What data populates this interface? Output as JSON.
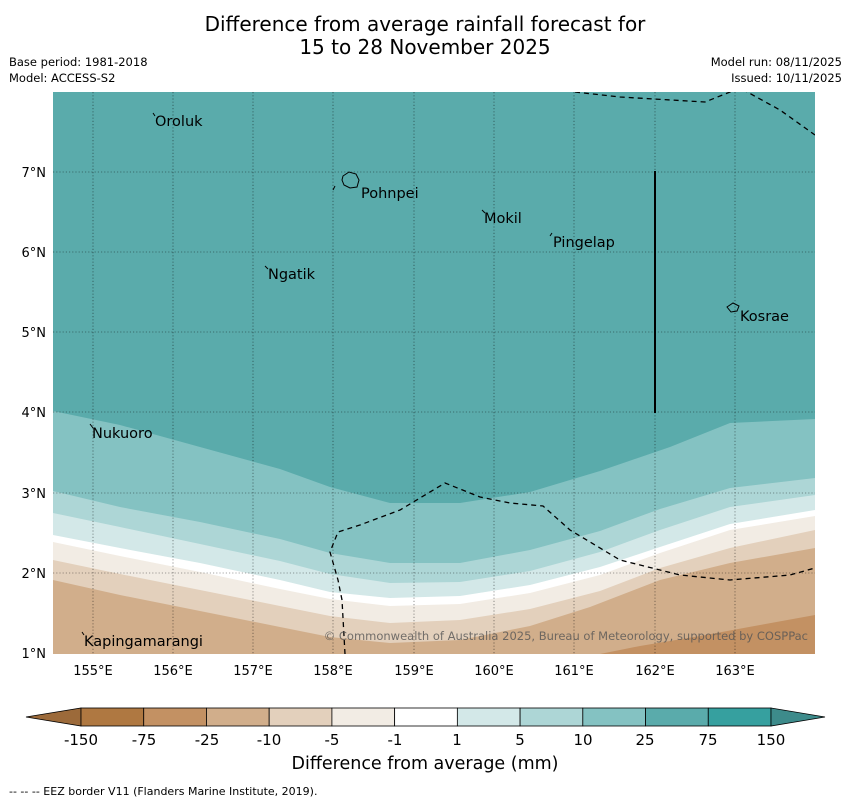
{
  "title": {
    "line1": "Difference from average rainfall forecast for",
    "line2": "15 to 28 November 2025"
  },
  "meta_left": {
    "base_period": "Base period: 1981-2018",
    "model": "Model: ACCESS-S2"
  },
  "meta_right": {
    "model_run": "Model run: 08/11/2025",
    "issued": "Issued: 10/11/2025"
  },
  "map": {
    "lon_labels": [
      "155°E",
      "156°E",
      "157°E",
      "158°E",
      "159°E",
      "160°E",
      "161°E",
      "162°E",
      "163°E"
    ],
    "lat_labels": [
      "7°N",
      "6°N",
      "5°N",
      "4°N",
      "3°N",
      "2°N",
      "1°N"
    ],
    "places": [
      {
        "name": "Oroluk"
      },
      {
        "name": "Pohnpei"
      },
      {
        "name": "Mokil"
      },
      {
        "name": "Pingelap"
      },
      {
        "name": "Ngatik"
      },
      {
        "name": "Kosrae"
      },
      {
        "name": "Nukuoro"
      },
      {
        "name": "Kapingamarangi"
      }
    ],
    "copyright": "© Commonwealth of Australia 2025, Bureau of Meteorology, supported by COSPPac"
  },
  "colorbar": {
    "tick_labels": [
      "-150",
      "-75",
      "-25",
      "-10",
      "-5",
      "-1",
      "1",
      "5",
      "10",
      "25",
      "75",
      "150"
    ],
    "colors": [
      "#af7841",
      "#c39163",
      "#d1ae8b",
      "#e3d0bc",
      "#f2ece4",
      "#ffffff",
      "#d3e8e8",
      "#add6d6",
      "#84c2c2",
      "#5aabab",
      "#36a09f"
    ],
    "under_color": "#9c6a3a",
    "over_color": "#3d8b8b",
    "title": "Difference from average (mm)"
  },
  "footer_note": "--  --  -- EEZ border V11 (Flanders Marine Institute, 2019)."
}
